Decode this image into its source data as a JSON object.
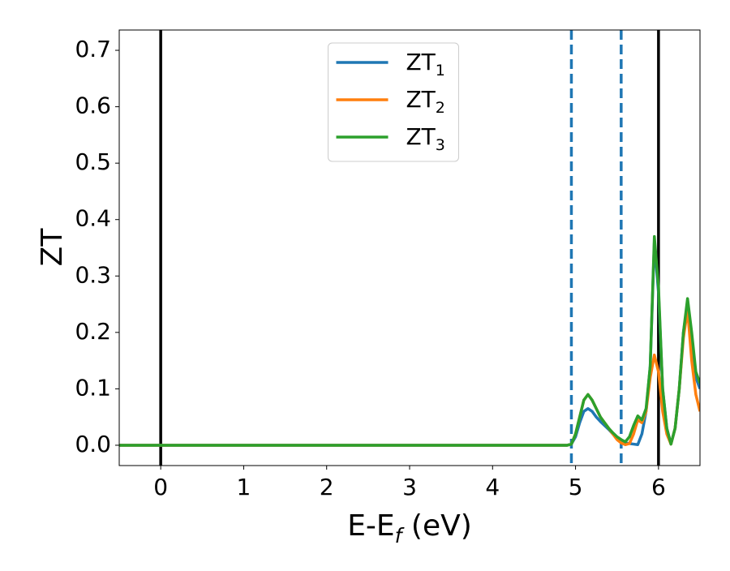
{
  "chart_data": {
    "type": "line",
    "xlabel": [
      "E-E",
      "f",
      " (eV)"
    ],
    "ylabel": "ZT",
    "x": [
      -0.5,
      4.9,
      4.95,
      5.0,
      5.05,
      5.1,
      5.15,
      5.2,
      5.25,
      5.3,
      5.35,
      5.4,
      5.45,
      5.5,
      5.55,
      5.6,
      5.65,
      5.7,
      5.75,
      5.8,
      5.85,
      5.9,
      5.95,
      6.0,
      6.05,
      6.1,
      6.15,
      6.2,
      6.25,
      6.3,
      6.35,
      6.4,
      6.45,
      6.5
    ],
    "series": [
      {
        "name": [
          "ZT",
          "1"
        ],
        "color": "#1f77b4",
        "values": [
          0,
          0,
          0.002,
          0.015,
          0.04,
          0.06,
          0.065,
          0.06,
          0.05,
          0.042,
          0.035,
          0.028,
          0.02,
          0.012,
          0.008,
          0.004,
          0.003,
          0.002,
          0.001,
          0.02,
          0.06,
          0.14,
          0.36,
          0.27,
          0.1,
          0.03,
          0.002,
          0.03,
          0.1,
          0.2,
          0.25,
          0.19,
          0.12,
          0.1
        ]
      },
      {
        "name": [
          "ZT",
          "2"
        ],
        "color": "#ff7f0e",
        "values": [
          0,
          0,
          0.002,
          0.02,
          0.05,
          0.08,
          0.09,
          0.08,
          0.065,
          0.05,
          0.04,
          0.03,
          0.02,
          0.01,
          0.004,
          0.001,
          0.003,
          0.02,
          0.045,
          0.04,
          0.06,
          0.12,
          0.16,
          0.13,
          0.06,
          0.02,
          0.002,
          0.03,
          0.1,
          0.19,
          0.24,
          0.15,
          0.09,
          0.06
        ]
      },
      {
        "name": [
          "ZT",
          "3"
        ],
        "color": "#2ca02c",
        "values": [
          0,
          0,
          0.002,
          0.02,
          0.05,
          0.08,
          0.09,
          0.08,
          0.065,
          0.05,
          0.04,
          0.03,
          0.022,
          0.015,
          0.01,
          0.006,
          0.015,
          0.035,
          0.052,
          0.045,
          0.065,
          0.14,
          0.37,
          0.28,
          0.1,
          0.03,
          0.002,
          0.03,
          0.1,
          0.2,
          0.26,
          0.2,
          0.13,
          0.11
        ]
      }
    ],
    "vlines": [
      {
        "x": 0,
        "color": "#000000",
        "style": "solid"
      },
      {
        "x": 6,
        "color": "#000000",
        "style": "solid"
      },
      {
        "x": 4.95,
        "color": "#1f77b4",
        "style": "dashed"
      },
      {
        "x": 5.55,
        "color": "#1f77b4",
        "style": "dashed"
      }
    ],
    "xlim": [
      -0.5,
      6.5
    ],
    "xticks": [
      0,
      1,
      2,
      3,
      4,
      5,
      6
    ],
    "ylim": [
      -0.036,
      0.736
    ],
    "yticks": [
      {
        "value": 0,
        "label": "0.0"
      },
      0.1,
      0.2,
      0.3,
      0.4,
      0.5,
      0.6,
      0.7
    ],
    "legend": "upper center",
    "grid": false
  }
}
